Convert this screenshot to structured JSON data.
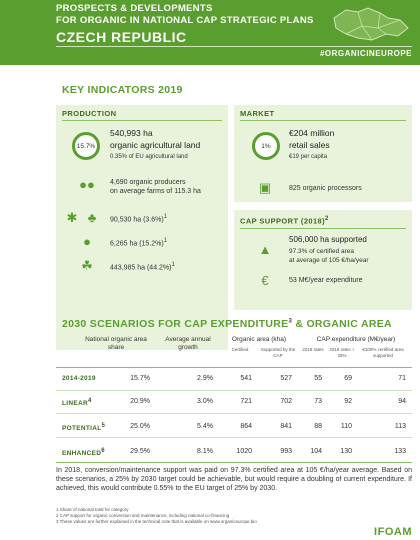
{
  "header": {
    "line1": "PROSPECTS & DEVELOPMENTS",
    "line2": "FOR ORGANIC IN NATIONAL CAP STRATEGIC PLANS",
    "country": "CZECH REPUBLIC",
    "hashtag": "#ORGANICINEUROPE"
  },
  "key_indicators": {
    "title": "KEY INDICATORS 2019"
  },
  "production": {
    "title": "PRODUCTION",
    "area_pct": "15.7%",
    "area": "540,993 ha",
    "area_label": "organic agricultural land",
    "eu_share": "0.35% of EU agricultural land",
    "producers": "4,690 organic producers",
    "producers_note": "on average farms of 115.3 ha",
    "crops": [
      {
        "icon": "wheat-icon",
        "value": "90,530 ha (3.6%)",
        "sup": "1"
      },
      {
        "icon": "apple-icon",
        "value": "6,265 ha (15.2%)",
        "sup": "1"
      },
      {
        "icon": "grass-icon",
        "value": "443,985 ha (44.2%)",
        "sup": "1"
      }
    ]
  },
  "market": {
    "title": "MARKET",
    "share": "1%",
    "sales": "€204 million",
    "sales_label": "retail sales",
    "per_capita": "€19 per capita",
    "processors": "825 organic processors"
  },
  "cap_support": {
    "title": "CAP SUPPORT (2018)",
    "sup": "2",
    "area": "506,000 ha supported",
    "pct": "97.3% of certified area",
    "avg": "at average of 105 €/ha/year",
    "expenditure": "53 M€/year expenditure"
  },
  "scenarios": {
    "title": "2030 SCENARIOS FOR CAP EXPENDITURE",
    "title_sup": "3",
    "title_rest": " & ORGANIC AREA",
    "headers": {
      "share": "National organic area share",
      "growth": "Average annual growth",
      "area": "Organic area (kha)",
      "cap": "CAP expenditure (M€/year)",
      "certified": "Certified",
      "supported": "Supported by the CAP",
      "rates2018": "2018 rates",
      "rates_plus": "2018 rates + 25%",
      "supported100": "€100% certified area supported"
    },
    "rows": [
      {
        "label": "2014-2019",
        "sup": "",
        "share": "15.7%",
        "growth": "2.9%",
        "certified": "541",
        "supported": "527",
        "r2018": "55",
        "r25": "69",
        "r100": "71"
      },
      {
        "label": "LINEAR",
        "sup": "4",
        "share": "20.9%",
        "growth": "3.0%",
        "certified": "721",
        "supported": "702",
        "r2018": "73",
        "r25": "92",
        "r100": "94"
      },
      {
        "label": "POTENTIAL",
        "sup": "5",
        "share": "25.0%",
        "growth": "5.4%",
        "certified": "864",
        "supported": "841",
        "r2018": "88",
        "r25": "110",
        "r100": "113"
      },
      {
        "label": "ENHANCED",
        "sup": "6",
        "share": "29.5%",
        "growth": "8.1%",
        "certified": "1020",
        "supported": "993",
        "r2018": "104",
        "r25": "130",
        "r100": "133"
      }
    ]
  },
  "note": "In 2018, conversion/maintenance support was paid on 97.3% certified area at 105 €/ha/year average. Based on these scenarios, a 25% by 2030 target could be achievable, but would require a doubling of current expenditure. If achieved, this would contribute 0.55% to the EU target of 25% by 2030.",
  "footnotes": [
    "1 Share of national total for category",
    "2 CAP support for organic conversion and maintenance, including national co-financing",
    "3 These values are further explained in the technical note that is available on www.organiceurope.bio"
  ],
  "logo": "IFOAM"
}
